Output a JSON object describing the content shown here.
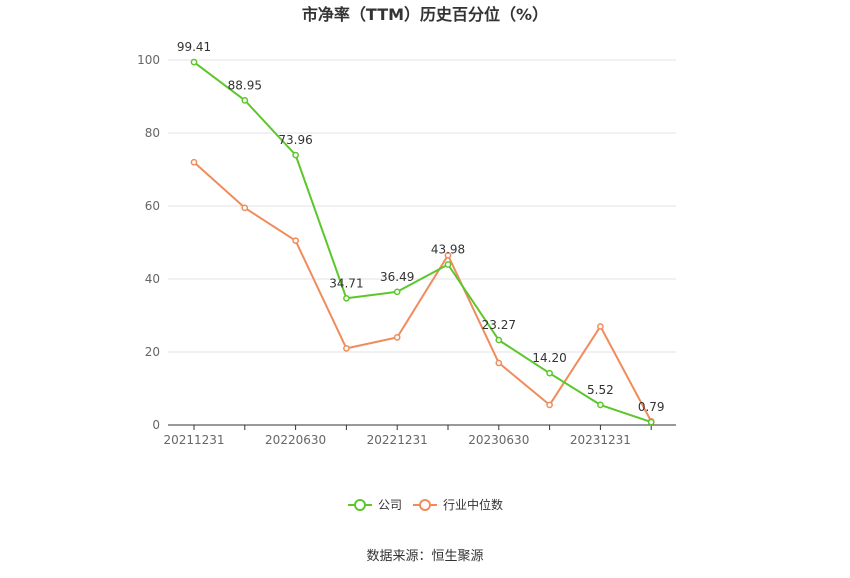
{
  "chart_data": {
    "type": "line",
    "title": "市净率（TTM）历史百分位（%）",
    "x": [
      "20211231",
      "20220331",
      "20220630",
      "20220930",
      "20221231",
      "20230331",
      "20230630",
      "20230930",
      "20231231",
      "20240331"
    ],
    "x_tick_labels": [
      "20211231",
      "20220630",
      "20221231",
      "20230630",
      "20231231"
    ],
    "y_ticks": [
      0,
      20,
      40,
      60,
      80,
      100
    ],
    "ylim": [
      0,
      100
    ],
    "grid": true,
    "legend": "bottom-center",
    "series": [
      {
        "name": "公司",
        "color": "#5cc72b",
        "values": [
          99.41,
          88.95,
          73.96,
          34.71,
          36.49,
          43.98,
          23.27,
          14.2,
          5.52,
          0.79
        ],
        "labels": [
          "99.41",
          "88.95",
          "73.96",
          "34.71",
          "36.49",
          "43.98",
          "23.27",
          "14.20",
          "5.52",
          "0.79"
        ]
      },
      {
        "name": "行业中位数",
        "color": "#f08c5c",
        "values": [
          72.0,
          59.5,
          50.5,
          21.0,
          24.0,
          46.5,
          17.0,
          5.5,
          27.0,
          1.0
        ]
      }
    ]
  },
  "footer": {
    "source": "数据来源：恒生聚源"
  }
}
